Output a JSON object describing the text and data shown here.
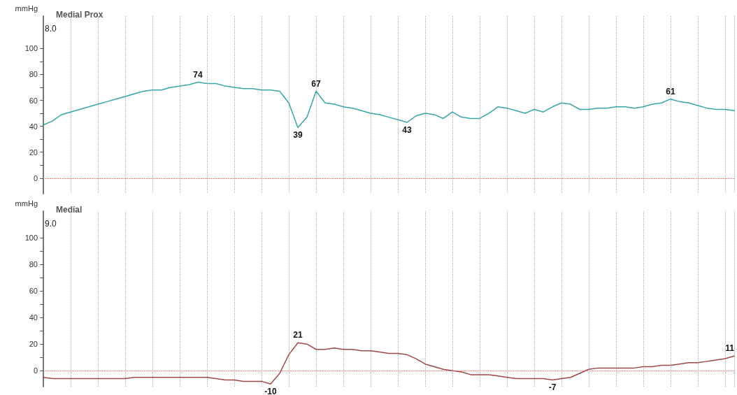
{
  "chart_data": [
    {
      "type": "line",
      "title": "Medial Prox",
      "ylabel": "mmHg",
      "annotations": [
        "8.0"
      ],
      "categories": [
        null,
        null,
        null,
        null,
        null,
        null,
        null,
        null,
        null,
        null,
        null,
        null,
        null,
        null,
        null,
        null,
        null,
        null,
        null,
        null,
        null,
        null,
        null,
        null,
        null,
        null,
        null,
        null,
        null,
        null,
        null,
        null,
        null,
        null,
        null,
        null,
        null,
        null,
        null,
        null,
        null,
        null,
        null,
        null,
        null,
        null,
        null,
        null,
        null,
        null,
        null,
        null,
        null,
        null,
        null,
        null,
        null,
        null,
        null,
        null,
        null,
        null,
        null,
        null,
        null,
        null,
        null,
        null,
        null,
        null,
        null,
        null,
        null,
        null,
        null,
        null,
        null
      ],
      "series": [
        {
          "color": "#3aa5a6",
          "values": [
            41,
            44,
            49,
            51,
            53,
            55,
            57,
            59,
            61,
            63,
            65,
            67,
            68,
            68,
            70,
            71,
            72,
            74,
            73,
            73,
            71,
            70,
            69,
            69,
            68,
            68,
            67,
            58,
            39,
            47,
            67,
            58,
            57,
            55,
            54,
            52,
            50,
            49,
            47,
            45,
            43,
            48,
            50,
            49,
            46,
            51,
            47,
            46,
            46,
            50,
            55,
            54,
            52,
            50,
            53,
            51,
            55,
            58,
            57,
            53,
            53,
            54,
            54,
            55,
            55,
            54,
            55,
            57,
            58,
            61,
            59,
            58,
            56,
            54,
            53,
            53,
            52
          ],
          "value_labels": [
            null,
            null,
            null,
            null,
            null,
            null,
            null,
            null,
            null,
            null,
            null,
            null,
            null,
            null,
            null,
            null,
            null,
            "74",
            null,
            null,
            null,
            null,
            null,
            null,
            null,
            null,
            null,
            null,
            "39",
            null,
            "67",
            null,
            null,
            null,
            null,
            null,
            null,
            null,
            null,
            null,
            "43",
            null,
            null,
            null,
            null,
            null,
            null,
            null,
            null,
            null,
            null,
            null,
            null,
            null,
            null,
            null,
            null,
            null,
            null,
            null,
            null,
            null,
            null,
            null,
            null,
            null,
            null,
            null,
            null,
            "61",
            null,
            null,
            null,
            null,
            null,
            null,
            null
          ]
        }
      ],
      "ylim": [
        -12,
        125
      ],
      "yticks": [
        0,
        {
          "value": 10,
          "label": null
        },
        20,
        {
          "value": 30,
          "label": null
        },
        40,
        {
          "value": 50,
          "label": null
        },
        60,
        {
          "value": 70,
          "label": null
        },
        80,
        {
          "value": 90,
          "label": null
        },
        100
      ],
      "grid": "x",
      "marker": "none",
      "line_style": "solid",
      "ref_lines": [
        {
          "axis": "y",
          "value": 0,
          "color": "#e85a5a",
          "line_style": "dotted"
        }
      ]
    },
    {
      "type": "line",
      "title": "Medial",
      "ylabel": "mmHg",
      "annotations": [
        "9.0"
      ],
      "categories": [
        null,
        null,
        null,
        null,
        null,
        null,
        null,
        null,
        null,
        null,
        null,
        null,
        null,
        null,
        null,
        null,
        null,
        null,
        null,
        null,
        null,
        null,
        null,
        null,
        null,
        null,
        null,
        null,
        null,
        null,
        null,
        null,
        null,
        null,
        null,
        null,
        null,
        null,
        null,
        null,
        null,
        null,
        null,
        null,
        null,
        null,
        null,
        null,
        null,
        null,
        null,
        null,
        null,
        null,
        null,
        null,
        null,
        null,
        null,
        null,
        null,
        null,
        null,
        null,
        null,
        null,
        null,
        null,
        null,
        null,
        null,
        null,
        null,
        null,
        null,
        null,
        null
      ],
      "series": [
        {
          "color": "#a04848",
          "values": [
            -5,
            -6,
            -6,
            -6,
            -6,
            -6,
            -6,
            -6,
            -6,
            -6,
            -5,
            -5,
            -5,
            -5,
            -5,
            -5,
            -5,
            -5,
            -5,
            -6,
            -7,
            -7,
            -8,
            -8,
            -8,
            -10,
            -2,
            12,
            21,
            20,
            16,
            16,
            17,
            16,
            16,
            15,
            15,
            14,
            13,
            13,
            12,
            9,
            5,
            3,
            1,
            0,
            -1,
            -3,
            -3,
            -3,
            -4,
            -5,
            -6,
            -6,
            -6,
            -6,
            -7,
            -6,
            -5,
            -2,
            1,
            2,
            2,
            2,
            2,
            2,
            3,
            3,
            4,
            4,
            5,
            6,
            6,
            7,
            8,
            9,
            11
          ],
          "value_labels": [
            null,
            null,
            null,
            null,
            null,
            null,
            null,
            null,
            null,
            null,
            null,
            null,
            null,
            null,
            null,
            null,
            null,
            null,
            null,
            null,
            null,
            null,
            null,
            null,
            null,
            "-10",
            null,
            null,
            "21",
            null,
            null,
            null,
            null,
            null,
            null,
            null,
            null,
            null,
            null,
            null,
            null,
            null,
            null,
            null,
            null,
            null,
            null,
            null,
            null,
            null,
            null,
            null,
            null,
            null,
            null,
            null,
            "-7",
            null,
            null,
            null,
            null,
            null,
            null,
            null,
            null,
            null,
            null,
            null,
            null,
            null,
            null,
            null,
            null,
            null,
            null,
            null,
            "11"
          ]
        }
      ],
      "ylim": [
        -12,
        120
      ],
      "yticks": [
        0,
        {
          "value": 10,
          "label": null
        },
        20,
        {
          "value": 30,
          "label": null
        },
        40,
        {
          "value": 50,
          "label": null
        },
        60,
        {
          "value": 70,
          "label": null
        },
        80,
        {
          "value": 90,
          "label": null
        },
        100
      ],
      "grid": "x",
      "marker": "none",
      "line_style": "solid",
      "ref_lines": [
        {
          "axis": "y",
          "value": 0,
          "color": "#e85a5a",
          "line_style": "dotted"
        }
      ]
    }
  ]
}
